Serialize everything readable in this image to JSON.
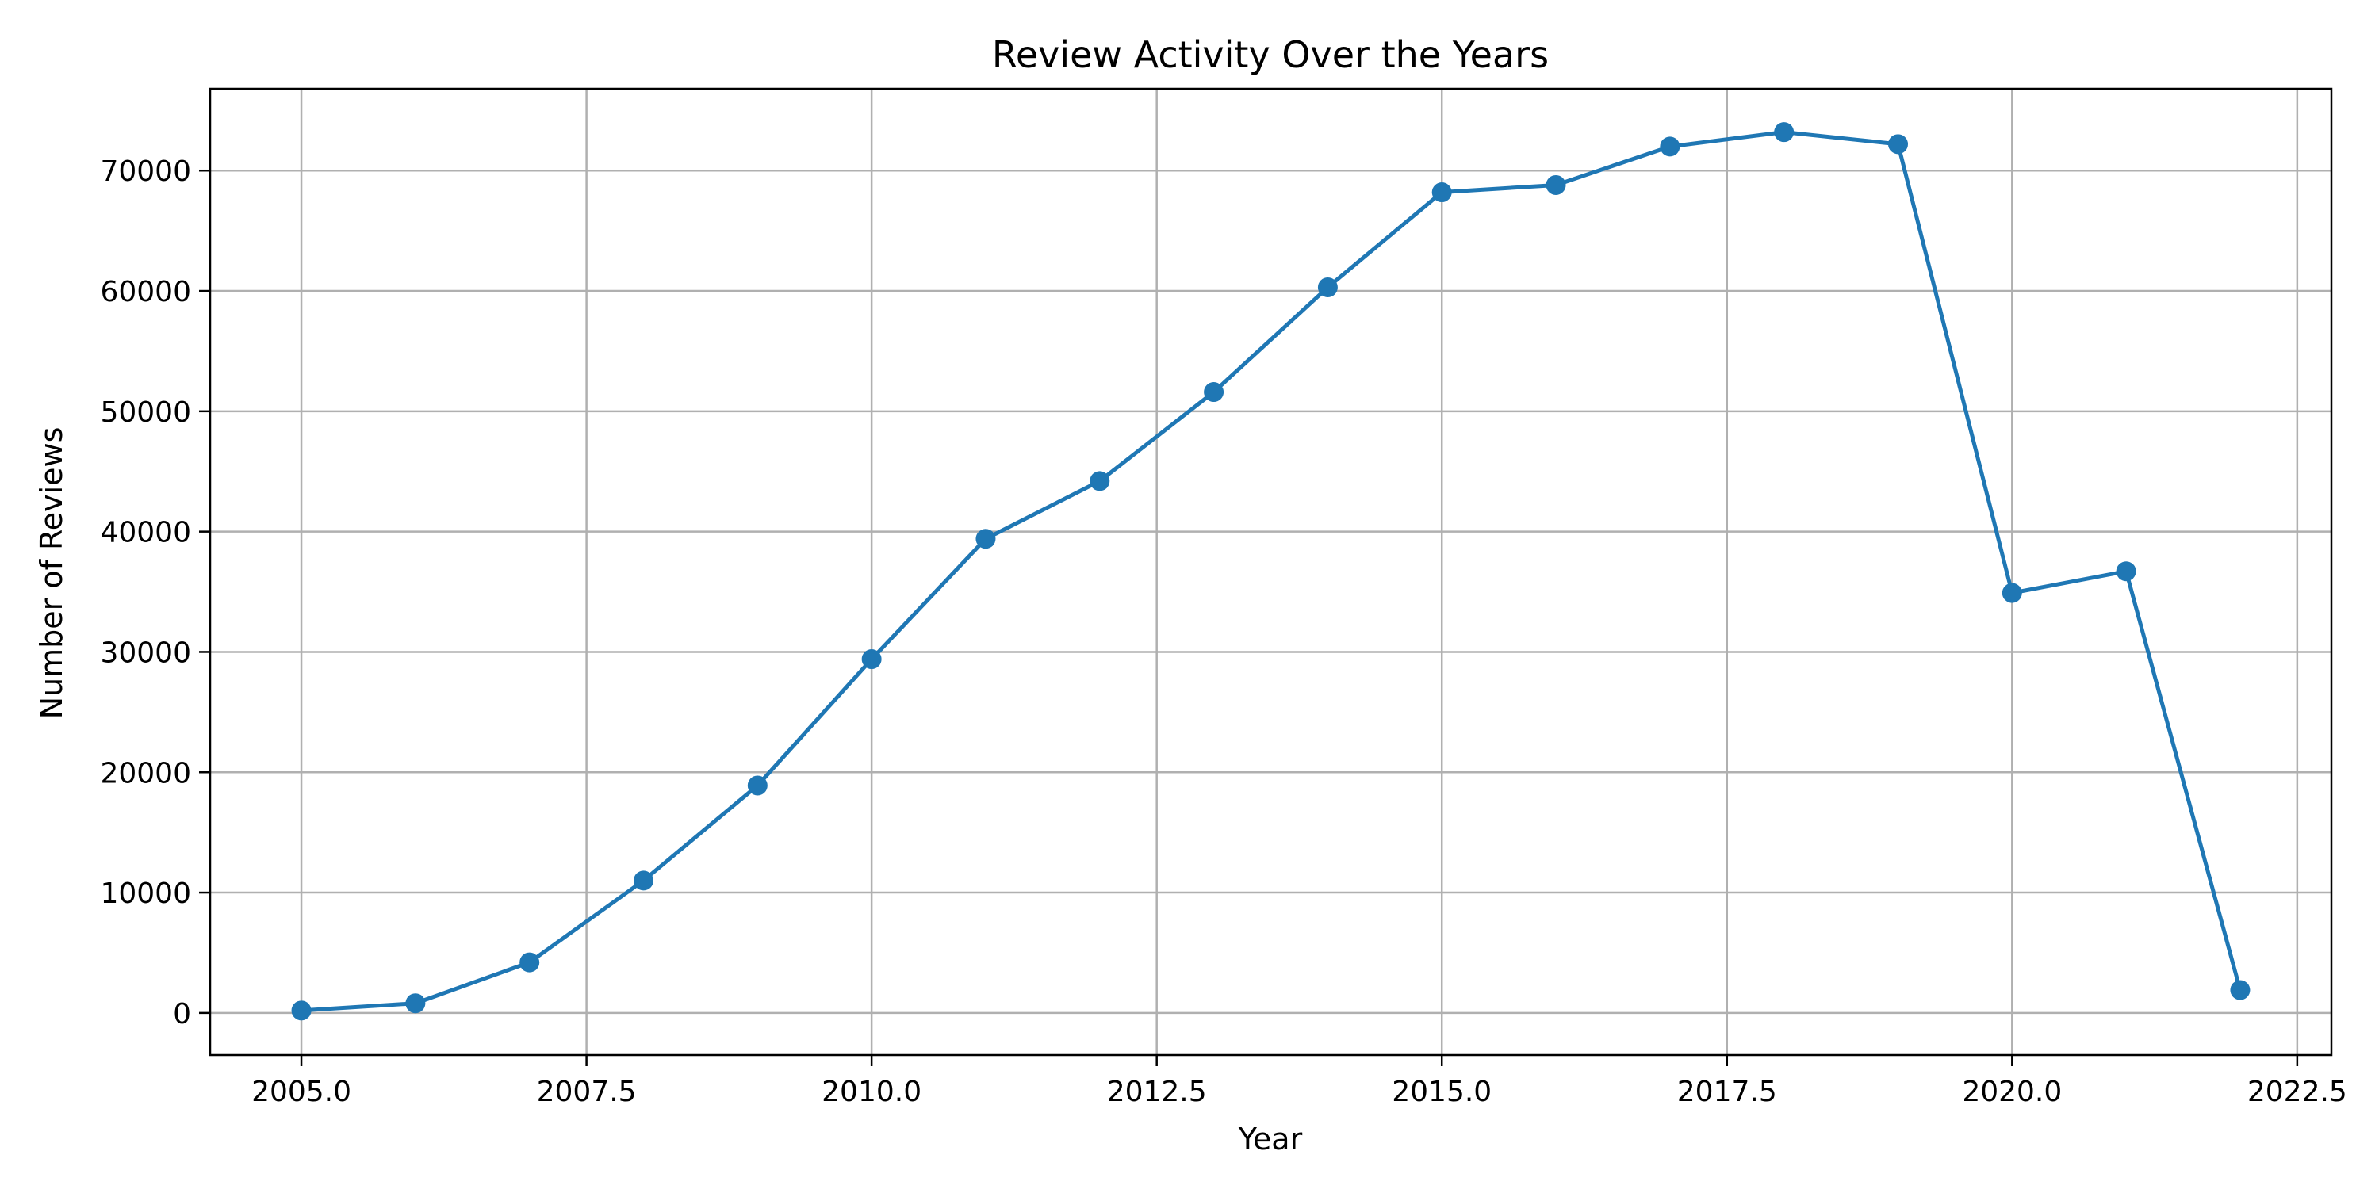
{
  "chart_data": {
    "type": "line",
    "title": "Review Activity Over the Years",
    "xlabel": "Year",
    "ylabel": "Number of Reviews",
    "xlim": [
      2004.2,
      2022.8
    ],
    "ylim": [
      -3500,
      76800
    ],
    "x_ticks": [
      2005.0,
      2007.5,
      2010.0,
      2012.5,
      2015.0,
      2017.5,
      2020.0,
      2022.5
    ],
    "x_tick_labels": [
      "2005.0",
      "2007.5",
      "2010.0",
      "2012.5",
      "2015.0",
      "2017.5",
      "2020.0",
      "2022.5"
    ],
    "y_ticks": [
      0,
      10000,
      20000,
      30000,
      40000,
      50000,
      60000,
      70000
    ],
    "y_tick_labels": [
      "0",
      "10000",
      "20000",
      "30000",
      "40000",
      "50000",
      "60000",
      "70000"
    ],
    "grid": true,
    "marker": "circle",
    "color": "#1f77b4",
    "series": [
      {
        "x": [
          2005,
          2006,
          2007,
          2008,
          2009,
          2010,
          2011,
          2012,
          2013,
          2014,
          2015,
          2016,
          2017,
          2018,
          2019,
          2020,
          2021,
          2022
        ],
        "y": [
          200,
          800,
          4200,
          11000,
          18900,
          29400,
          39400,
          44200,
          51600,
          60300,
          68200,
          68800,
          72000,
          73200,
          72200,
          34900,
          36700,
          1900
        ]
      }
    ]
  }
}
